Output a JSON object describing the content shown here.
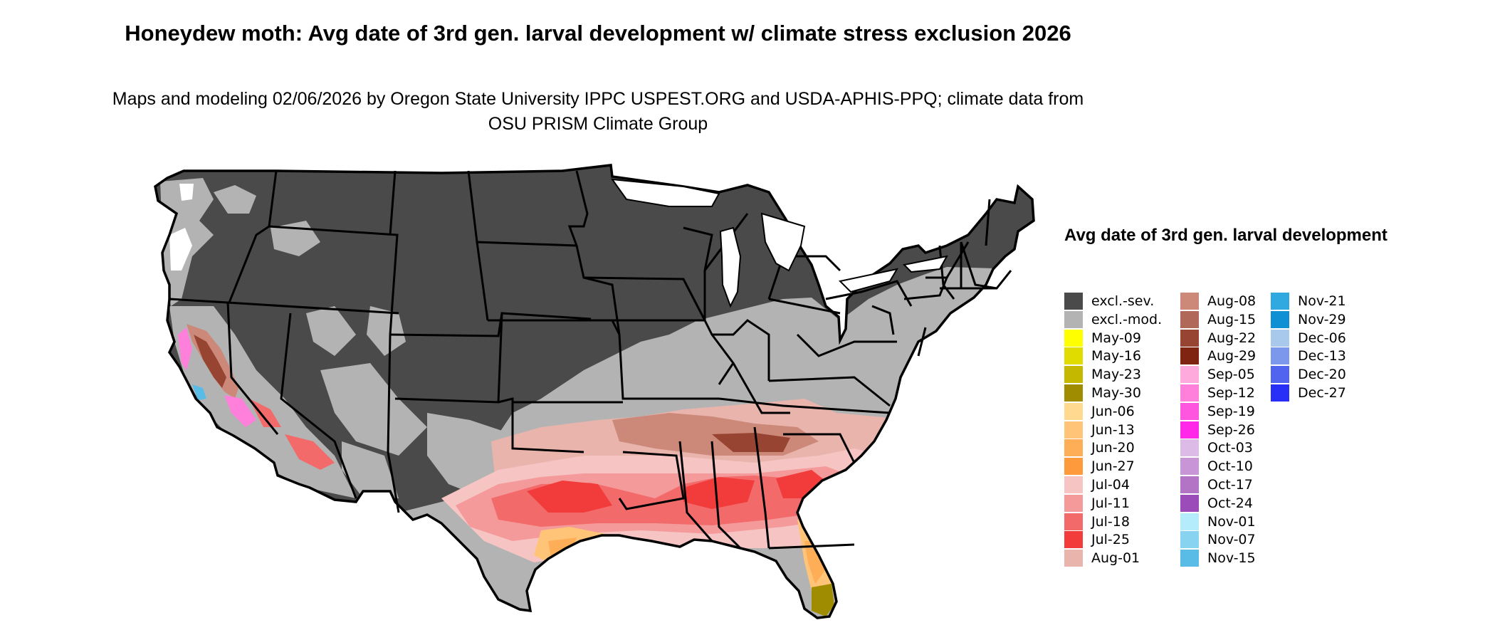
{
  "title": "Honeydew moth: Avg date of 3rd gen. larval development w/ climate stress exclusion 2026",
  "subtitle": "Maps and modeling 02/06/2026 by Oregon State University IPPC USPEST.ORG and USDA-APHIS-PPQ; climate data from OSU PRISM Climate Group",
  "legend": {
    "title": "Avg date of 3rd gen. larval development",
    "items": [
      {
        "label": "excl.-sev.",
        "color": "#4a4a4a"
      },
      {
        "label": "excl.-mod.",
        "color": "#b3b3b3"
      },
      {
        "label": "May-09",
        "color": "#ffff00"
      },
      {
        "label": "May-16",
        "color": "#e0dc00"
      },
      {
        "label": "May-23",
        "color": "#c4b800"
      },
      {
        "label": "May-30",
        "color": "#a08c00"
      },
      {
        "label": "Jun-06",
        "color": "#ffd990"
      },
      {
        "label": "Jun-13",
        "color": "#ffc478"
      },
      {
        "label": "Jun-20",
        "color": "#ffae58"
      },
      {
        "label": "Jun-27",
        "color": "#ff9a3c"
      },
      {
        "label": "Jul-04",
        "color": "#f7c4c4"
      },
      {
        "label": "Jul-11",
        "color": "#f59a9a"
      },
      {
        "label": "Jul-18",
        "color": "#f36a6a"
      },
      {
        "label": "Jul-25",
        "color": "#f23c3c"
      },
      {
        "label": "Aug-01",
        "color": "#e8b4ac"
      },
      {
        "label": "Aug-08",
        "color": "#cc8878"
      },
      {
        "label": "Aug-15",
        "color": "#b06858"
      },
      {
        "label": "Aug-22",
        "color": "#984432"
      },
      {
        "label": "Aug-29",
        "color": "#7e2410"
      },
      {
        "label": "Sep-05",
        "color": "#ffaadc"
      },
      {
        "label": "Sep-12",
        "color": "#ff80da"
      },
      {
        "label": "Sep-19",
        "color": "#ff56e0"
      },
      {
        "label": "Sep-26",
        "color": "#ff28e8"
      },
      {
        "label": "Oct-03",
        "color": "#dcbce6"
      },
      {
        "label": "Oct-10",
        "color": "#c896d6"
      },
      {
        "label": "Oct-17",
        "color": "#b474c6"
      },
      {
        "label": "Oct-24",
        "color": "#9c4cb8"
      },
      {
        "label": "Nov-01",
        "color": "#b4ecfc"
      },
      {
        "label": "Nov-07",
        "color": "#88d4f0"
      },
      {
        "label": "Nov-15",
        "color": "#58bce6"
      },
      {
        "label": "Nov-21",
        "color": "#30a8e0"
      },
      {
        "label": "Nov-29",
        "color": "#1090d4"
      },
      {
        "label": "Dec-06",
        "color": "#a8c8ec"
      },
      {
        "label": "Dec-13",
        "color": "#7c98ec"
      },
      {
        "label": "Dec-20",
        "color": "#5064f0"
      },
      {
        "label": "Dec-27",
        "color": "#2830f8"
      }
    ]
  }
}
